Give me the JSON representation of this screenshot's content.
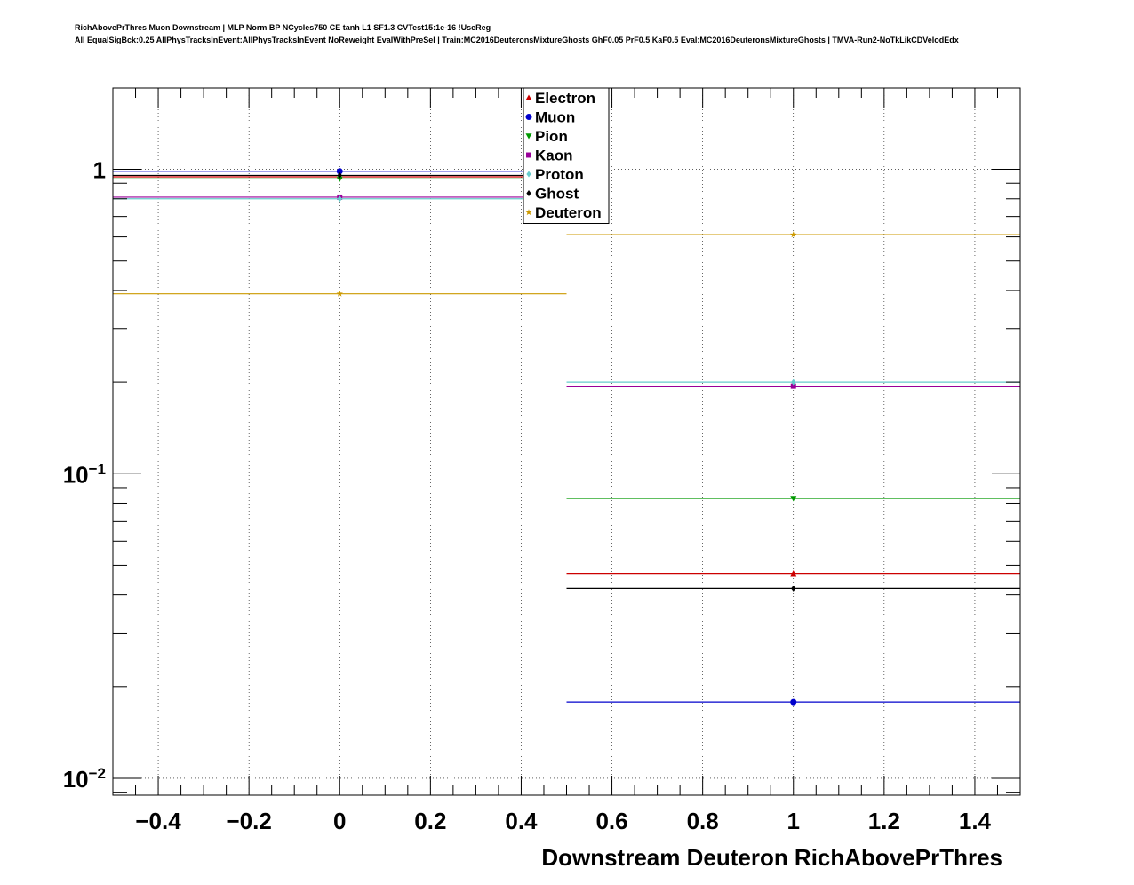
{
  "title": {
    "line1": "RichAbovePrThres Muon Downstream | MLP Norm BP NCycles750 CE tanh L1 SF1.3 CVTest15:1e-16 !UseReg",
    "line2": "All EqualSigBck:0.25 AllPhysTracksInEvent:AllPhysTracksInEvent NoReweight EvalWithPreSel | Train:MC2016DeuteronsMixtureGhosts GhF0.05 PrF0.5 KaF0.5 Eval:MC2016DeuteronsMixtureGhosts | TMVA-Run2-NoTkLikCDVelodEdx"
  },
  "chart_data": {
    "type": "scatter",
    "xlabel": "Downstream Deuteron RichAbovePrThres",
    "ylabel": "",
    "xlim": [
      -0.5,
      1.5
    ],
    "ylim": [
      0.0088,
      1.85
    ],
    "yscale": "log",
    "grid": true,
    "legend_position": "top-center",
    "x_ticks": [
      "−0.4",
      "−0.2",
      "0",
      "0.2",
      "0.4",
      "0.6",
      "0.8",
      "1",
      "1.2",
      "1.4"
    ],
    "x_tick_values": [
      -0.4,
      -0.2,
      0,
      0.2,
      0.4,
      0.6,
      0.8,
      1,
      1.2,
      1.4
    ],
    "y_ticks": [
      {
        "value": 1,
        "base": "1",
        "exp": ""
      },
      {
        "value": 0.1,
        "base": "10",
        "exp": "−1"
      },
      {
        "value": 0.01,
        "base": "10",
        "exp": "−2"
      }
    ],
    "bins": [
      [
        -0.5,
        0.5
      ],
      [
        0.5,
        1.5
      ]
    ],
    "series": [
      {
        "name": "Electron",
        "color": "#cc0000",
        "marker": "triangle-up",
        "x": [
          0,
          1
        ],
        "y": [
          0.945,
          0.047
        ]
      },
      {
        "name": "Muon",
        "color": "#0000cc",
        "marker": "circle",
        "x": [
          0,
          1
        ],
        "y": [
          0.985,
          0.0178
        ]
      },
      {
        "name": "Pion",
        "color": "#009900",
        "marker": "triangle-down",
        "x": [
          0,
          1
        ],
        "y": [
          0.93,
          0.083
        ]
      },
      {
        "name": "Kaon",
        "color": "#990099",
        "marker": "square",
        "x": [
          0,
          1
        ],
        "y": [
          0.81,
          0.194
        ]
      },
      {
        "name": "Proton",
        "color": "#66cccc",
        "marker": "diamond",
        "x": [
          0,
          1
        ],
        "y": [
          0.8,
          0.2
        ]
      },
      {
        "name": "Ghost",
        "color": "#000000",
        "marker": "diamond",
        "x": [
          0,
          1
        ],
        "y": [
          0.955,
          0.042
        ]
      },
      {
        "name": "Deuteron",
        "color": "#cc9900",
        "marker": "star",
        "x": [
          0,
          1
        ],
        "y": [
          0.39,
          0.61
        ]
      }
    ]
  }
}
